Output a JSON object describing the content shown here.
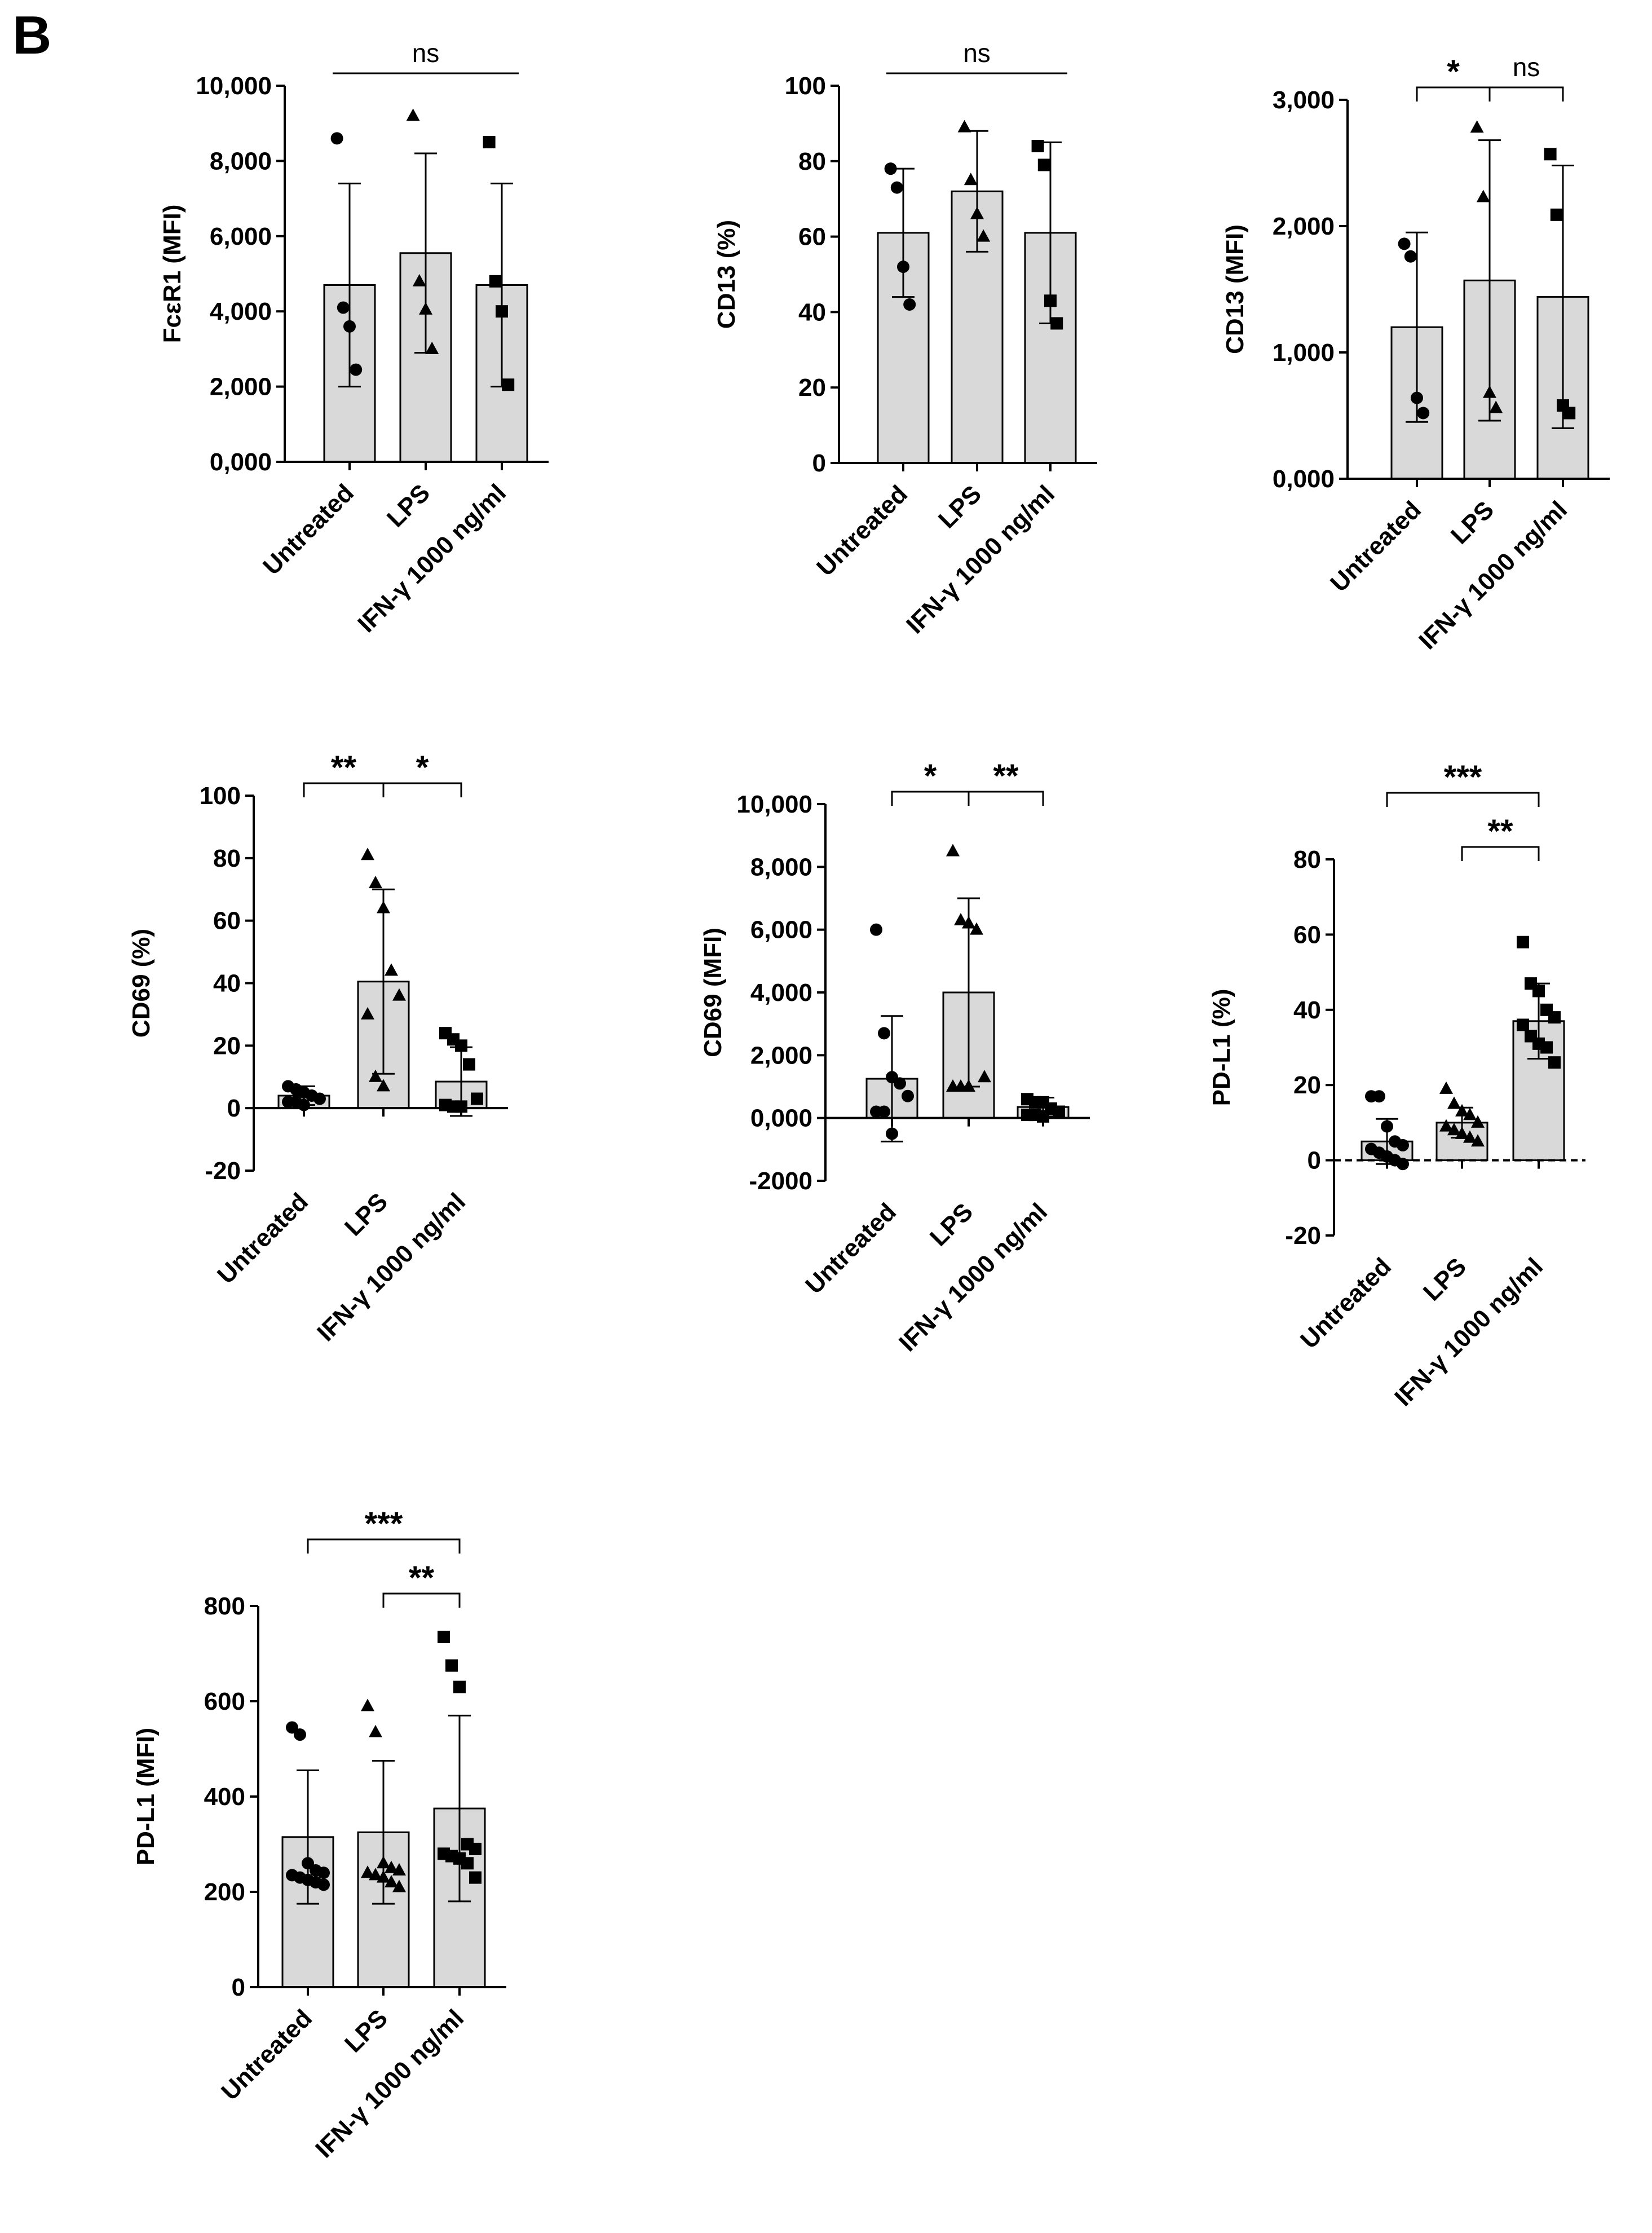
{
  "figure": {
    "panel_letter": "B"
  },
  "chart_data": [
    {
      "id": "fceR1-mfi",
      "type": "bar",
      "ylabel": "FcεR1 (MFI)",
      "ylim": [
        0,
        10000
      ],
      "yticks": [
        0,
        2000,
        4000,
        6000,
        8000,
        10000
      ],
      "ytick_labels": [
        "0,000",
        "2,000",
        "4,000",
        "6,000",
        "8,000",
        "10,000"
      ],
      "categories": [
        "Untreated",
        "LPS",
        "IFN-γ 1000 ng/ml"
      ],
      "values": [
        4700,
        5550,
        4700
      ],
      "errors": [
        2700,
        2650,
        2700
      ],
      "points": [
        [
          8600,
          4100,
          3600,
          2450
        ],
        [
          9200,
          4800,
          4050,
          3000
        ],
        [
          8500,
          4800,
          4000,
          2050
        ]
      ],
      "markers": [
        "circle",
        "triangle",
        "square"
      ],
      "significance": [
        {
          "from": 0,
          "to": 2,
          "label": "ns",
          "style": "line"
        }
      ]
    },
    {
      "id": "cd13-pct",
      "type": "bar",
      "ylabel": "CD13 (%)",
      "ylim": [
        0,
        100
      ],
      "yticks": [
        0,
        20,
        40,
        60,
        80,
        100
      ],
      "ytick_labels": [
        "0",
        "20",
        "40",
        "60",
        "80",
        "100"
      ],
      "categories": [
        "Untreated",
        "LPS",
        "IFN-γ 1000 ng/ml"
      ],
      "values": [
        61,
        72,
        61
      ],
      "errors": [
        17,
        16,
        24
      ],
      "points": [
        [
          78,
          73,
          52,
          42
        ],
        [
          89,
          75,
          66,
          60
        ],
        [
          84,
          79,
          43,
          37
        ]
      ],
      "markers": [
        "circle",
        "triangle",
        "square"
      ],
      "significance": [
        {
          "from": 0,
          "to": 2,
          "label": "ns",
          "style": "line"
        }
      ]
    },
    {
      "id": "cd13-mfi",
      "type": "bar",
      "ylabel": "CD13 (MFI)",
      "ylim": [
        0,
        3000
      ],
      "yticks": [
        0,
        1000,
        2000,
        3000
      ],
      "ytick_labels": [
        "0,000",
        "1,000",
        "2,000",
        "3,000"
      ],
      "categories": [
        "Untreated",
        "LPS",
        "IFN-γ 1000 ng/ml"
      ],
      "values": [
        1200,
        1570,
        1440
      ],
      "errors": [
        750,
        1110,
        1040
      ],
      "points": [
        [
          1860,
          1760,
          640,
          520
        ],
        [
          2780,
          2230,
          680,
          560
        ],
        [
          2570,
          2090,
          580,
          520
        ]
      ],
      "markers": [
        "circle",
        "triangle",
        "square"
      ],
      "significance": [
        {
          "from": 0,
          "to": 1,
          "label": "*",
          "style": "bracket"
        },
        {
          "from": 1,
          "to": 2,
          "label": "ns",
          "style": "bracket"
        }
      ]
    },
    {
      "id": "cd69-pct",
      "type": "bar",
      "ylabel": "CD69 (%)",
      "ylim": [
        -20,
        100
      ],
      "yticks": [
        -20,
        0,
        20,
        40,
        60,
        80,
        100
      ],
      "ytick_labels": [
        "-20",
        "0",
        "20",
        "40",
        "60",
        "80",
        "100"
      ],
      "categories": [
        "Untreated",
        "LPS",
        "IFN-γ 1000 ng/ml"
      ],
      "values": [
        4,
        40.5,
        8.5
      ],
      "errors": [
        3,
        29.5,
        11
      ],
      "points": [
        [
          7,
          6,
          5,
          4,
          3,
          2,
          2,
          1
        ],
        [
          81,
          72,
          64,
          44,
          36,
          30,
          10,
          7
        ],
        [
          24,
          22,
          20,
          14,
          3,
          1,
          0.5,
          0.5
        ]
      ],
      "markers": [
        "circle",
        "triangle",
        "square"
      ],
      "significance": [
        {
          "from": 0,
          "to": 1,
          "label": "**",
          "style": "bracket"
        },
        {
          "from": 1,
          "to": 2,
          "label": "*",
          "style": "bracket"
        }
      ]
    },
    {
      "id": "cd69-mfi",
      "type": "bar",
      "ylabel": "CD69 (MFI)",
      "ylim": [
        -2000,
        10000
      ],
      "yticks": [
        -2000,
        0,
        2000,
        4000,
        6000,
        8000,
        10000
      ],
      "ytick_labels": [
        "-2000",
        "0,000",
        "2,000",
        "4,000",
        "6,000",
        "8,000",
        "10,000"
      ],
      "categories": [
        "Untreated",
        "LPS",
        "IFN-γ 1000 ng/ml"
      ],
      "values": [
        1250,
        4000,
        350
      ],
      "errors": [
        2000,
        3000,
        300
      ],
      "points": [
        [
          6000,
          2700,
          1300,
          1100,
          700,
          200,
          200,
          -500
        ],
        [
          8500,
          6300,
          6200,
          6000,
          1300,
          1000,
          1000,
          1000
        ],
        [
          600,
          500,
          500,
          300,
          200,
          100,
          100,
          50
        ]
      ],
      "markers": [
        "circle",
        "triangle",
        "square"
      ],
      "significance": [
        {
          "from": 0,
          "to": 1,
          "label": "*",
          "style": "bracket"
        },
        {
          "from": 1,
          "to": 2,
          "label": "**",
          "style": "bracket"
        }
      ]
    },
    {
      "id": "pdl1-pct",
      "type": "bar",
      "ylabel": "PD-L1 (%)",
      "ylim": [
        -20,
        80
      ],
      "yticks": [
        -20,
        0,
        20,
        40,
        60,
        80
      ],
      "ytick_labels": [
        "-20",
        "0",
        "20",
        "40",
        "60",
        "80"
      ],
      "categories": [
        "Untreated",
        "LPS",
        "IFN-γ 1000 ng/ml"
      ],
      "values": [
        5,
        10,
        37
      ],
      "errors": [
        6,
        4,
        10
      ],
      "points": [
        [
          17,
          17,
          9,
          5,
          4,
          3,
          2,
          1,
          0,
          -1
        ],
        [
          19,
          15,
          13,
          12,
          10,
          9,
          8,
          7,
          6,
          5
        ],
        [
          58,
          47,
          45,
          40,
          38,
          36,
          33,
          31,
          30,
          26
        ]
      ],
      "markers": [
        "circle",
        "triangle",
        "square"
      ],
      "baseline_dashed": true,
      "significance": [
        {
          "from": 0,
          "to": 2,
          "label": "***",
          "style": "bracket"
        },
        {
          "from": 1,
          "to": 2,
          "label": "**",
          "style": "bracket"
        }
      ]
    },
    {
      "id": "pdl1-mfi",
      "type": "bar",
      "ylabel": "PD-L1 (MFI)",
      "ylim": [
        0,
        800
      ],
      "yticks": [
        0,
        200,
        400,
        600,
        800
      ],
      "ytick_labels": [
        "0",
        "200",
        "400",
        "600",
        "800"
      ],
      "categories": [
        "Untreated",
        "LPS",
        "IFN-γ 1000 ng/ml"
      ],
      "values": [
        315,
        325,
        375
      ],
      "errors": [
        140,
        150,
        195
      ],
      "points": [
        [
          545,
          530,
          260,
          245,
          240,
          235,
          230,
          225,
          220,
          215
        ],
        [
          590,
          535,
          260,
          250,
          245,
          240,
          235,
          230,
          220,
          210
        ],
        [
          735,
          675,
          630,
          300,
          290,
          280,
          275,
          270,
          260,
          230
        ]
      ],
      "markers": [
        "circle",
        "triangle",
        "square"
      ],
      "significance": [
        {
          "from": 0,
          "to": 2,
          "label": "***",
          "style": "bracket"
        },
        {
          "from": 1,
          "to": 2,
          "label": "**",
          "style": "bracket"
        }
      ]
    }
  ]
}
